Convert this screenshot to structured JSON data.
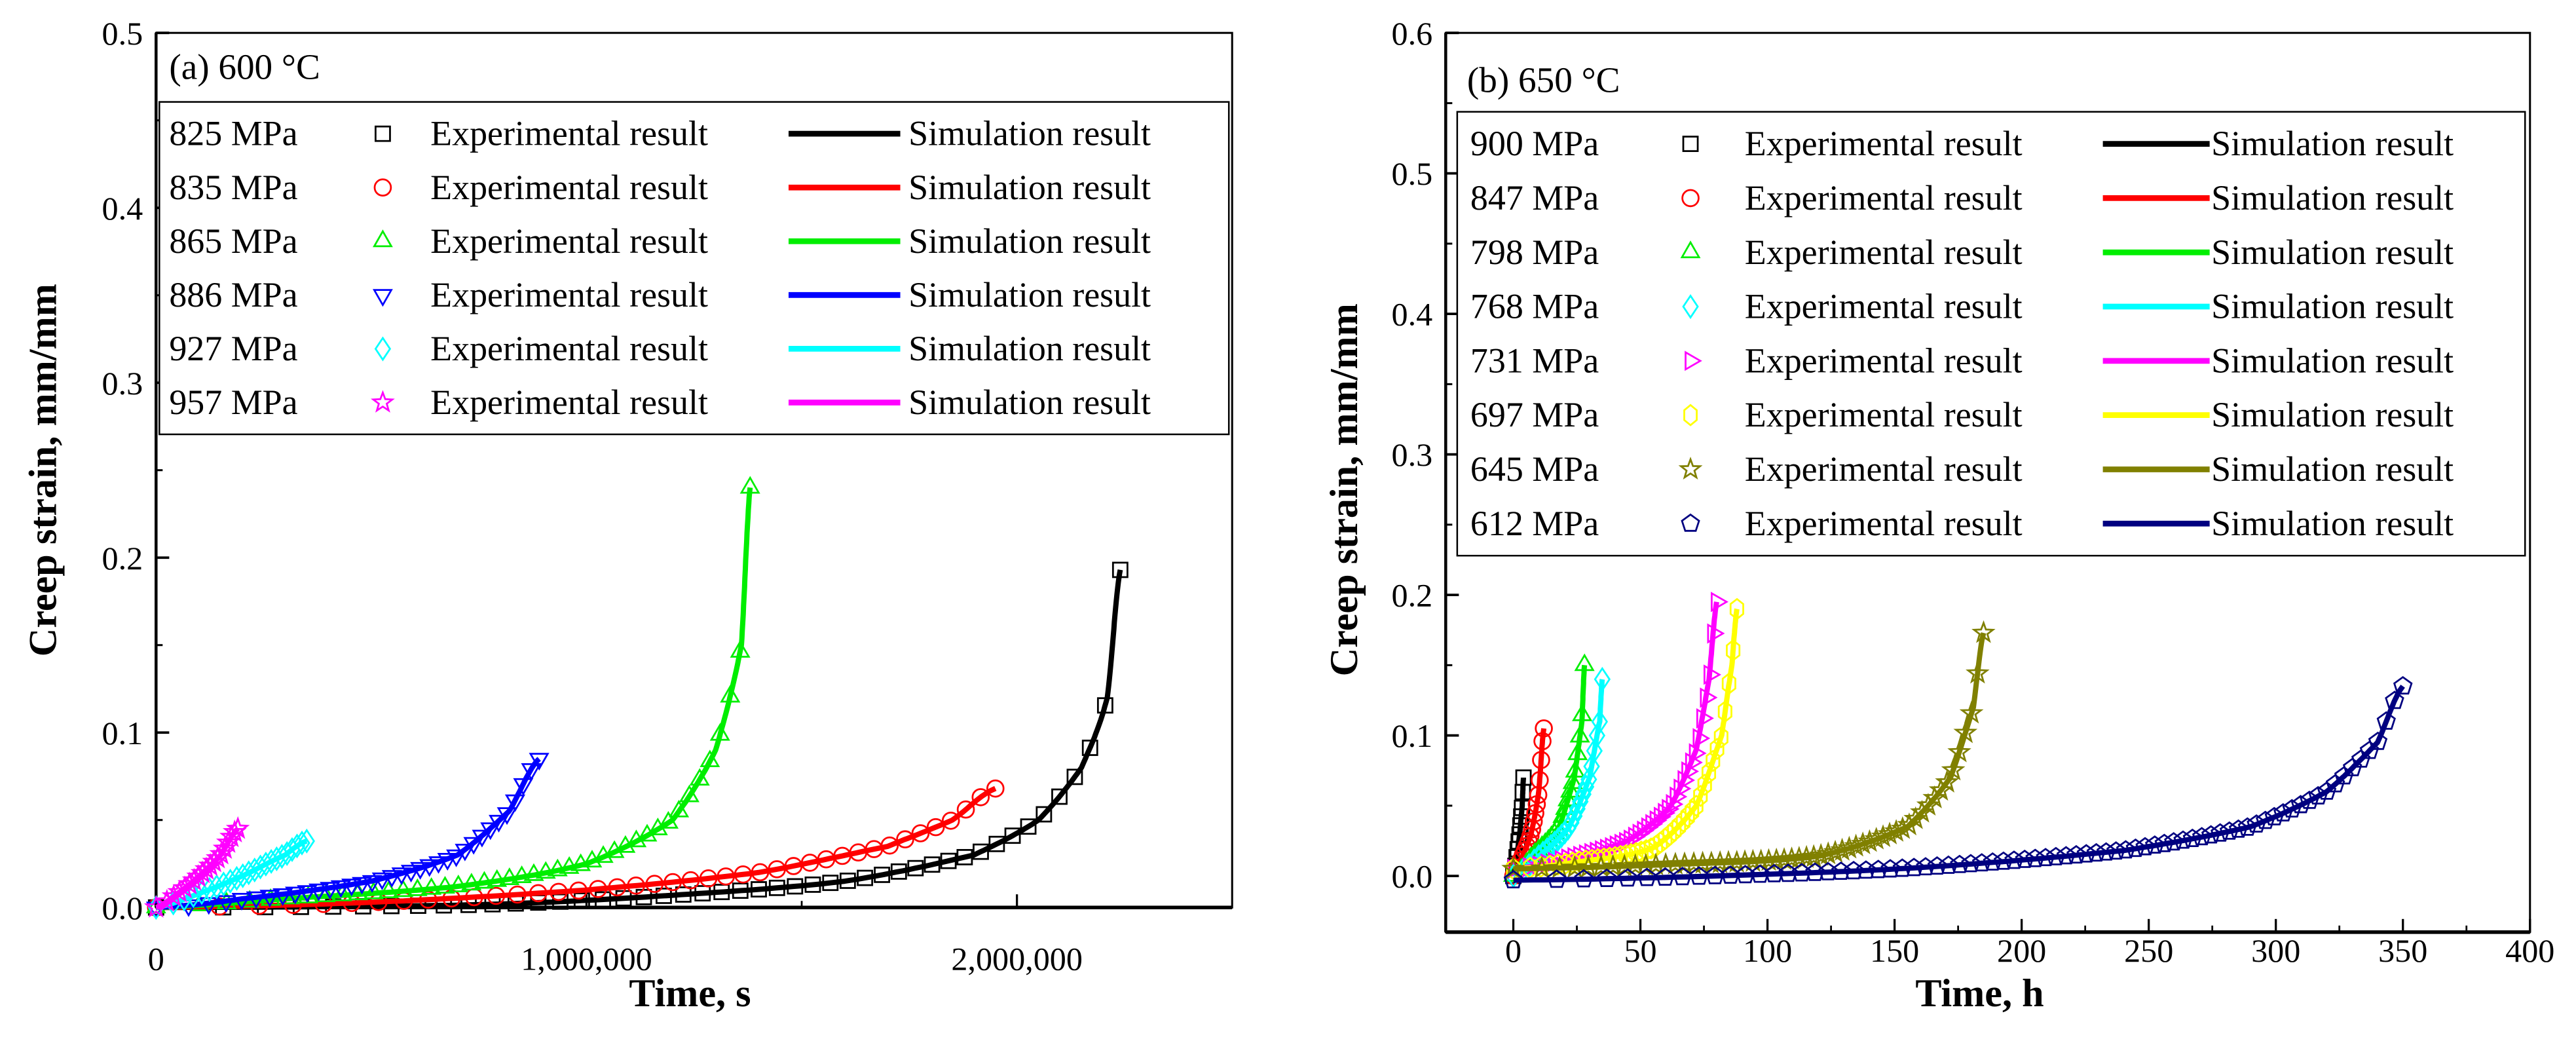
{
  "chart_data": [
    {
      "type": "line",
      "title": "(a) 600 °C",
      "xlabel": "Time, s",
      "ylabel": "Creep strain, mm/mm",
      "xlim": [
        0,
        2500000
      ],
      "ylim": [
        0,
        0.5
      ],
      "xticks": [
        0,
        1000000,
        2000000
      ],
      "xtick_labels": [
        "0",
        "1,000,000",
        "2,000,000"
      ],
      "yticks": [
        0,
        0.1,
        0.2,
        0.3,
        0.4,
        0.5
      ],
      "ytick_labels": [
        "0.0",
        "0.1",
        "0.2",
        "0.3",
        "0.4",
        "0.5"
      ],
      "legend_placement": "top-left",
      "exp_label": "Experimental result",
      "sim_label": "Simulation result",
      "series": [
        {
          "name": "825 MPa",
          "color": "#000000",
          "marker": "square",
          "points": [
            [
              0,
              0
            ],
            [
              400000,
              0.0005
            ],
            [
              800000,
              0.002
            ],
            [
              1200000,
              0.007
            ],
            [
              1600000,
              0.015
            ],
            [
              1900000,
              0.03
            ],
            [
              2050000,
              0.05
            ],
            [
              2150000,
              0.08
            ],
            [
              2210000,
              0.12
            ],
            [
              2240000,
              0.193
            ]
          ]
        },
        {
          "name": "835 MPa",
          "color": "#ff0000",
          "marker": "circle",
          "points": [
            [
              0,
              0
            ],
            [
              500000,
              0.003
            ],
            [
              1000000,
              0.01
            ],
            [
              1400000,
              0.02
            ],
            [
              1700000,
              0.035
            ],
            [
              1850000,
              0.05
            ],
            [
              1950000,
              0.068
            ]
          ]
        },
        {
          "name": "865 MPa",
          "color": "#00ee00",
          "marker": "triangle-up",
          "points": [
            [
              0,
              0
            ],
            [
              300000,
              0.005
            ],
            [
              700000,
              0.012
            ],
            [
              1000000,
              0.025
            ],
            [
              1200000,
              0.05
            ],
            [
              1300000,
              0.09
            ],
            [
              1360000,
              0.15
            ],
            [
              1380000,
              0.24
            ]
          ]
        },
        {
          "name": "886 MPa",
          "color": "#0000ff",
          "marker": "triangle-down",
          "points": [
            [
              0,
              0
            ],
            [
              200000,
              0.005
            ],
            [
              500000,
              0.015
            ],
            [
              700000,
              0.03
            ],
            [
              820000,
              0.055
            ],
            [
              890000,
              0.085
            ]
          ]
        },
        {
          "name": "927 MPa",
          "color": "#00ffff",
          "marker": "diamond",
          "points": [
            [
              0,
              0
            ],
            [
              100000,
              0.008
            ],
            [
              200000,
              0.018
            ],
            [
              300000,
              0.03
            ],
            [
              350000,
              0.038
            ]
          ]
        },
        {
          "name": "957 MPa",
          "color": "#ff00ff",
          "marker": "star",
          "points": [
            [
              0,
              0
            ],
            [
              50000,
              0.008
            ],
            [
              100000,
              0.018
            ],
            [
              150000,
              0.03
            ],
            [
              190000,
              0.045
            ]
          ]
        }
      ]
    },
    {
      "type": "line",
      "title": "(b) 650 °C",
      "xlabel": "Time, h",
      "ylabel": "Creep strain, mm/mm",
      "xlim": [
        -26.6,
        400
      ],
      "ylim": [
        -0.04,
        0.6
      ],
      "xticks": [
        0,
        50,
        100,
        150,
        200,
        250,
        300,
        350,
        400
      ],
      "xtick_labels": [
        "0",
        "50",
        "100",
        "150",
        "200",
        "250",
        "300",
        "350",
        "400"
      ],
      "yticks": [
        0,
        0.1,
        0.2,
        0.3,
        0.4,
        0.5,
        0.6
      ],
      "ytick_labels": [
        "0.0",
        "0.1",
        "0.2",
        "0.3",
        "0.4",
        "0.5",
        "0.6"
      ],
      "legend_placement": "top-right",
      "exp_label": "Experimental result",
      "sim_label": "Simulation result",
      "series": [
        {
          "name": "900 MPa",
          "color": "#000000",
          "marker": "square",
          "points": [
            [
              0,
              0
            ],
            [
              1,
              0.01
            ],
            [
              2.5,
              0.03
            ],
            [
              3.5,
              0.05
            ],
            [
              4,
              0.07
            ]
          ]
        },
        {
          "name": "847 MPa",
          "color": "#ff0000",
          "marker": "circle",
          "points": [
            [
              0,
              0
            ],
            [
              3,
              0.012
            ],
            [
              7,
              0.03
            ],
            [
              10,
              0.06
            ],
            [
              12,
              0.105
            ]
          ]
        },
        {
          "name": "798 MPa",
          "color": "#00ee00",
          "marker": "triangle-up",
          "points": [
            [
              0,
              0
            ],
            [
              8,
              0.015
            ],
            [
              18,
              0.035
            ],
            [
              24,
              0.07
            ],
            [
              27,
              0.11
            ],
            [
              28,
              0.15
            ]
          ]
        },
        {
          "name": "768 MPa",
          "color": "#00ffff",
          "marker": "diamond",
          "points": [
            [
              0,
              0
            ],
            [
              10,
              0.014
            ],
            [
              22,
              0.035
            ],
            [
              30,
              0.07
            ],
            [
              34,
              0.11
            ],
            [
              35,
              0.14
            ]
          ]
        },
        {
          "name": "731 MPa",
          "color": "#ff00ff",
          "marker": "triangle-right",
          "points": [
            [
              0,
              0.005
            ],
            [
              20,
              0.012
            ],
            [
              45,
              0.025
            ],
            [
              62,
              0.05
            ],
            [
              72,
              0.09
            ],
            [
              77,
              0.14
            ],
            [
              80,
              0.195
            ]
          ]
        },
        {
          "name": "697 MPa",
          "color": "#ffff00",
          "marker": "hexagon",
          "points": [
            [
              0,
              0.005
            ],
            [
              25,
              0.01
            ],
            [
              55,
              0.02
            ],
            [
              72,
              0.05
            ],
            [
              82,
              0.1
            ],
            [
              86,
              0.15
            ],
            [
              88,
              0.19
            ]
          ]
        },
        {
          "name": "645 MPa",
          "color": "#808000",
          "marker": "star",
          "points": [
            [
              0,
              0.005
            ],
            [
              60,
              0.008
            ],
            [
              120,
              0.014
            ],
            [
              155,
              0.035
            ],
            [
              172,
              0.07
            ],
            [
              181,
              0.12
            ],
            [
              185,
              0.173
            ]
          ]
        },
        {
          "name": "612 MPa",
          "color": "#000080",
          "marker": "pentagon",
          "points": [
            [
              0,
              -0.003
            ],
            [
              80,
              0
            ],
            [
              160,
              0.006
            ],
            [
              240,
              0.018
            ],
            [
              290,
              0.035
            ],
            [
              320,
              0.06
            ],
            [
              340,
              0.095
            ],
            [
              350,
              0.135
            ]
          ]
        }
      ]
    }
  ]
}
